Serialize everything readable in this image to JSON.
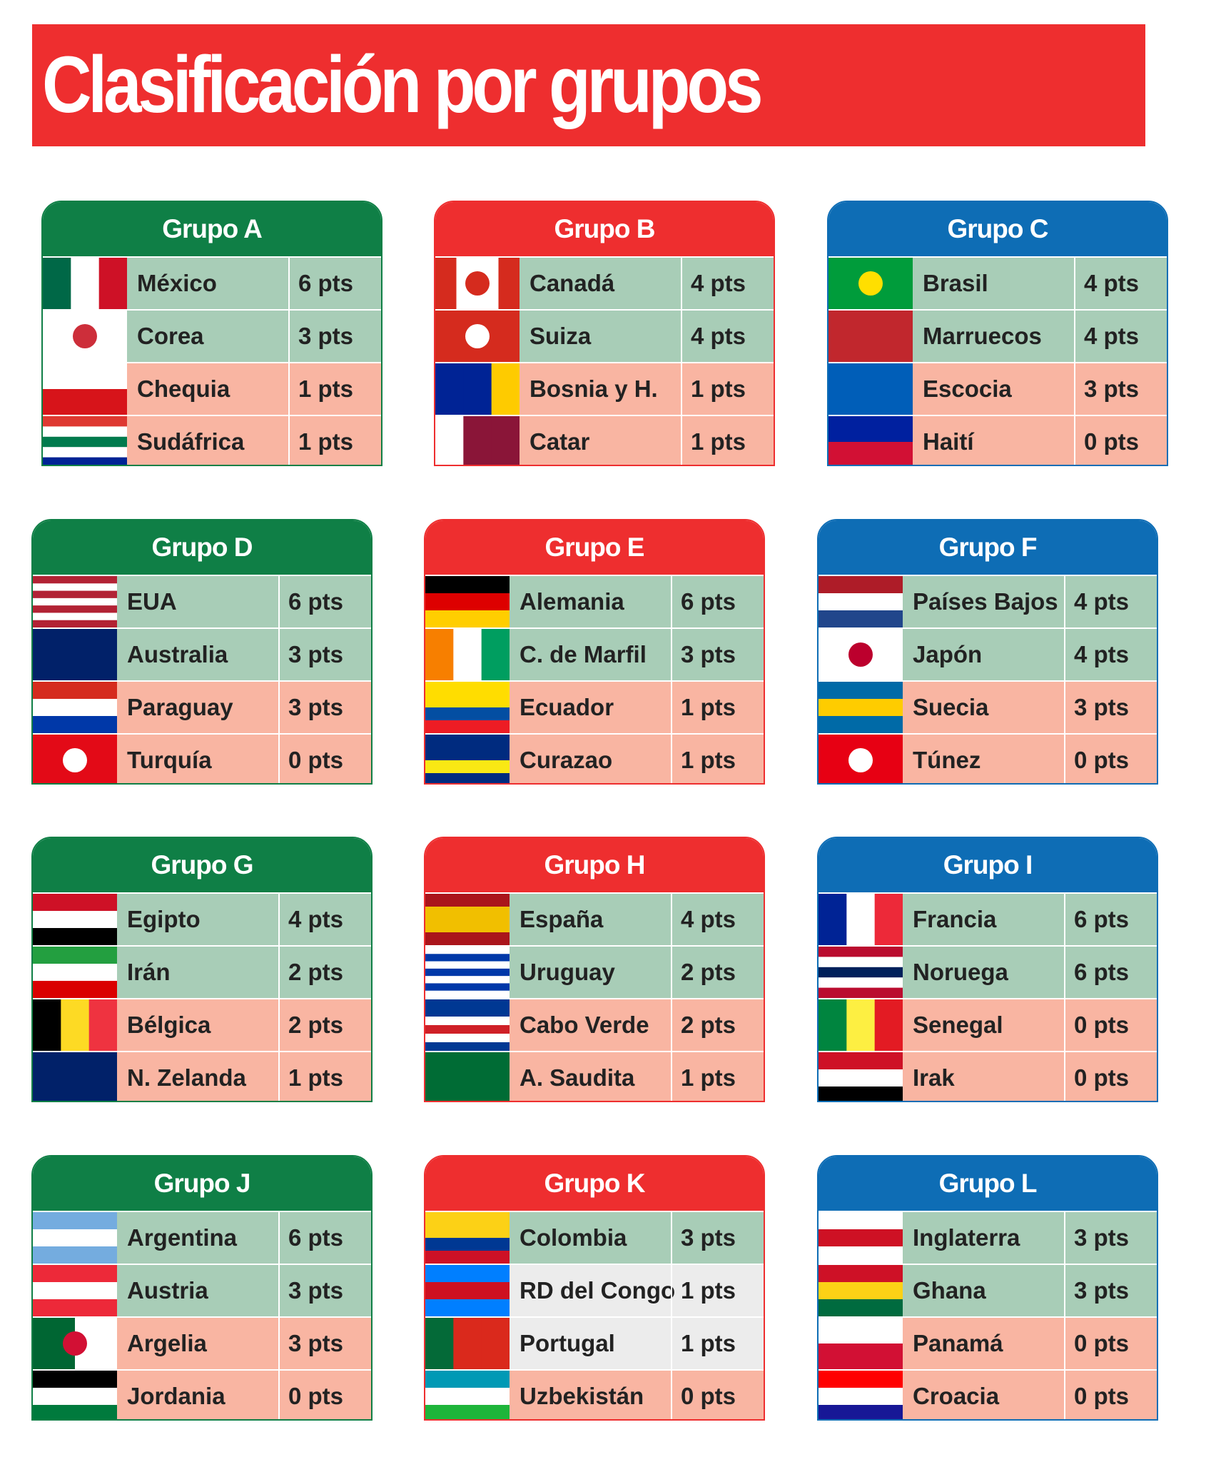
{
  "title": "Clasificación por grupos",
  "groups": [
    {
      "name": "Grupo A",
      "teams": [
        {
          "name": "México",
          "points": "6 pts"
        },
        {
          "name": "Corea",
          "points": "3 pts"
        },
        {
          "name": "Chequia",
          "points": "1 pts"
        },
        {
          "name": "Sudáfrica",
          "points": "1 pts"
        }
      ]
    },
    {
      "name": "Grupo B",
      "teams": [
        {
          "name": "Canadá",
          "points": "4 pts"
        },
        {
          "name": "Suiza",
          "points": "4 pts"
        },
        {
          "name": "Bosnia y H.",
          "points": "1 pts"
        },
        {
          "name": "Catar",
          "points": "1 pts"
        }
      ]
    },
    {
      "name": "Grupo C",
      "teams": [
        {
          "name": "Brasil",
          "points": "4 pts"
        },
        {
          "name": "Marruecos",
          "points": "4 pts"
        },
        {
          "name": "Escocia",
          "points": "3 pts"
        },
        {
          "name": "Haití",
          "points": "0 pts"
        }
      ]
    },
    {
      "name": "Grupo D",
      "teams": [
        {
          "name": "EUA",
          "points": "6 pts"
        },
        {
          "name": "Australia",
          "points": "3 pts"
        },
        {
          "name": "Paraguay",
          "points": "3 pts"
        },
        {
          "name": "Turquía",
          "points": "0 pts"
        }
      ]
    },
    {
      "name": "Grupo E",
      "teams": [
        {
          "name": "Alemania",
          "points": "6 pts"
        },
        {
          "name": "C. de Marfil",
          "points": "3 pts"
        },
        {
          "name": "Ecuador",
          "points": "1 pts"
        },
        {
          "name": "Curazao",
          "points": "1 pts"
        }
      ]
    },
    {
      "name": "Grupo F",
      "teams": [
        {
          "name": "Países Bajos",
          "points": "4 pts"
        },
        {
          "name": "Japón",
          "points": "4 pts"
        },
        {
          "name": "Suecia",
          "points": "3 pts"
        },
        {
          "name": "Túnez",
          "points": "0 pts"
        }
      ]
    },
    {
      "name": "Grupo G",
      "teams": [
        {
          "name": "Egipto",
          "points": "4 pts"
        },
        {
          "name": "Irán",
          "points": "2 pts"
        },
        {
          "name": "Bélgica",
          "points": "2 pts"
        },
        {
          "name": "N. Zelanda",
          "points": "1 pts"
        }
      ]
    },
    {
      "name": "Grupo H",
      "teams": [
        {
          "name": "España",
          "points": "4 pts"
        },
        {
          "name": "Uruguay",
          "points": "2 pts"
        },
        {
          "name": "Cabo Verde",
          "points": "2 pts"
        },
        {
          "name": "A. Saudita",
          "points": "1 pts"
        }
      ]
    },
    {
      "name": "Grupo I",
      "teams": [
        {
          "name": "Francia",
          "points": "6 pts"
        },
        {
          "name": "Noruega",
          "points": "6 pts"
        },
        {
          "name": "Senegal",
          "points": "0 pts"
        },
        {
          "name": "Irak",
          "points": "0 pts"
        }
      ]
    },
    {
      "name": "Grupo J",
      "teams": [
        {
          "name": "Argentina",
          "points": "6 pts"
        },
        {
          "name": "Austria",
          "points": "3 pts"
        },
        {
          "name": "Argelia",
          "points": "3 pts"
        },
        {
          "name": "Jordania",
          "points": "0 pts"
        }
      ]
    },
    {
      "name": "Grupo K",
      "teams": [
        {
          "name": "Colombia",
          "points": "3 pts"
        },
        {
          "name": "RD del Congo",
          "points": "1 pts"
        },
        {
          "name": "Portugal",
          "points": "1 pts"
        },
        {
          "name": "Uzbekistán",
          "points": "0 pts"
        }
      ]
    },
    {
      "name": "Grupo L",
      "teams": [
        {
          "name": "Inglaterra",
          "points": "3 pts"
        },
        {
          "name": "Ghana",
          "points": "3 pts"
        },
        {
          "name": "Panamá",
          "points": "0 pts"
        },
        {
          "name": "Croacia",
          "points": "0 pts"
        }
      ]
    }
  ]
}
